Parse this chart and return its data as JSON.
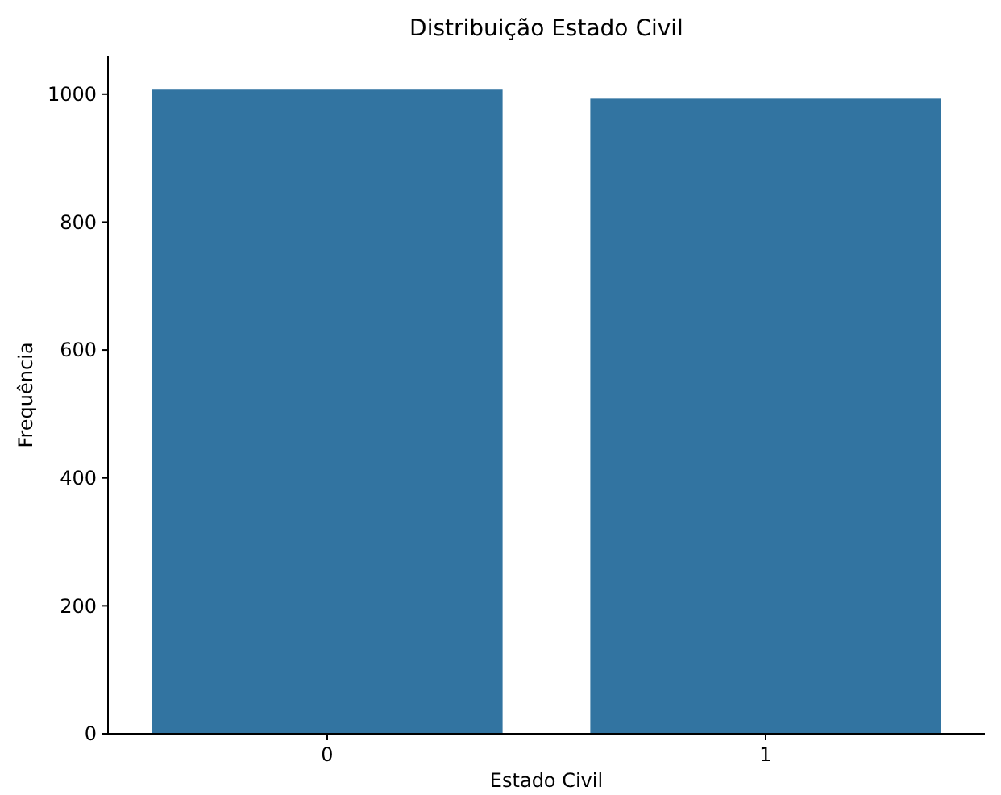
{
  "chart_data": {
    "type": "bar",
    "title": "Distribuição Estado Civil",
    "xlabel": "Estado Civil",
    "ylabel": "Frequência",
    "categories": [
      "0",
      "1"
    ],
    "values": [
      1007,
      993
    ],
    "color": "#3274a1",
    "ylim": [
      0,
      1059
    ],
    "yticks": [
      0,
      200,
      400,
      600,
      800,
      1000
    ],
    "grid": false
  }
}
